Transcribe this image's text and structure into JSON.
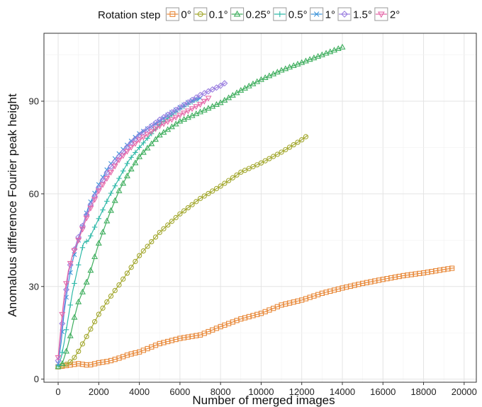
{
  "chart_data": {
    "type": "line",
    "xlabel": "Number of merged images",
    "ylabel": "Anomalous difference Fourier peak height",
    "legend": {
      "title": "Rotation step",
      "placement": "top"
    },
    "xlim": [
      -700,
      20600
    ],
    "ylim": [
      -1,
      112
    ],
    "xticks": [
      "0",
      "2000",
      "4000",
      "6000",
      "8000",
      "10000",
      "12000",
      "14000",
      "16000",
      "18000",
      "20000"
    ],
    "yticks": [
      "0",
      "30",
      "60",
      "90"
    ],
    "grid": true,
    "series": [
      {
        "name": "0°",
        "color": "#E8893A",
        "marker": "square",
        "x": [
          0,
          500,
          1000,
          1500,
          2000,
          2500,
          3000,
          3500,
          4000,
          5000,
          6000,
          7000,
          8000,
          9000,
          10000,
          11000,
          12000,
          13000,
          14000,
          15000,
          16000,
          17000,
          18000,
          19000,
          19500
        ],
        "y": [
          4,
          4.5,
          5,
          4.5,
          5.3,
          5.8,
          6.8,
          8,
          8.8,
          11.5,
          13.2,
          14.3,
          17,
          19.5,
          21.3,
          24,
          25.6,
          27.8,
          29.5,
          31,
          32.3,
          33.5,
          34.4,
          35.5,
          36
        ]
      },
      {
        "name": "0.1°",
        "color": "#A3A82F",
        "marker": "circle",
        "x": [
          0,
          250,
          500,
          750,
          1000,
          1500,
          2000,
          2500,
          3000,
          4000,
          5000,
          6000,
          7000,
          8000,
          9000,
          10000,
          11000,
          12000,
          12300
        ],
        "y": [
          4,
          4.5,
          5,
          6.5,
          9,
          15,
          21,
          26,
          30.5,
          40,
          47.5,
          53.5,
          58.5,
          62.5,
          67,
          70,
          73.5,
          77.5,
          79
        ]
      },
      {
        "name": "0.25°",
        "color": "#3FAE5E",
        "marker": "triangle",
        "x": [
          0,
          200,
          400,
          600,
          800,
          1000,
          1500,
          2000,
          2500,
          3000,
          3500,
          4000,
          5000,
          6000,
          7000,
          8000,
          9000,
          10000,
          11000,
          12000,
          13000,
          14000
        ],
        "y": [
          4,
          5,
          9,
          14,
          20,
          25,
          33,
          44,
          53,
          61,
          67,
          72,
          79,
          83.5,
          86.5,
          89.5,
          93.5,
          97,
          100,
          102.5,
          105,
          107.5
        ]
      },
      {
        "name": "0.5°",
        "color": "#2FB9A8",
        "marker": "plus",
        "x": [
          0,
          150,
          300,
          500,
          700,
          1000,
          1250,
          1500,
          2000,
          2500,
          3000,
          3500,
          4000,
          5000,
          6000,
          6800
        ],
        "y": [
          4.5,
          7,
          12,
          20,
          28,
          37,
          44,
          45,
          52,
          59,
          65,
          71,
          75,
          82.5,
          87.5,
          90.5
        ]
      },
      {
        "name": "1°",
        "color": "#3F95D9",
        "marker": "cross",
        "x": [
          0,
          150,
          300,
          500,
          700,
          1000,
          1500,
          2000,
          2500,
          3000,
          3500,
          4000,
          4500,
          5000,
          5500,
          6000,
          6500,
          7000
        ],
        "y": [
          5,
          12,
          22,
          31,
          38,
          45,
          56,
          63,
          69,
          73,
          76.5,
          79.5,
          81.5,
          83.5,
          86,
          88,
          90,
          91
        ]
      },
      {
        "name": "1.5°",
        "color": "#9B7FE0",
        "marker": "diamond",
        "x": [
          0,
          150,
          300,
          500,
          700,
          1000,
          1500,
          2000,
          2500,
          3000,
          3500,
          4000,
          5000,
          6000,
          7000,
          8000,
          8250
        ],
        "y": [
          6,
          15,
          24,
          34,
          40,
          46,
          55,
          62,
          68,
          72,
          76,
          79,
          84,
          88,
          92,
          95,
          96
        ]
      },
      {
        "name": "2°",
        "color": "#E567A8",
        "marker": "triangle-down",
        "x": [
          0,
          150,
          300,
          500,
          700,
          1000,
          1500,
          2000,
          2500,
          3000,
          3500,
          4000,
          5000,
          6000,
          7000,
          7400
        ],
        "y": [
          7,
          18,
          27,
          35,
          40,
          45,
          54,
          61,
          66,
          71,
          74.5,
          77.5,
          82,
          85.5,
          89,
          91
        ]
      }
    ]
  }
}
